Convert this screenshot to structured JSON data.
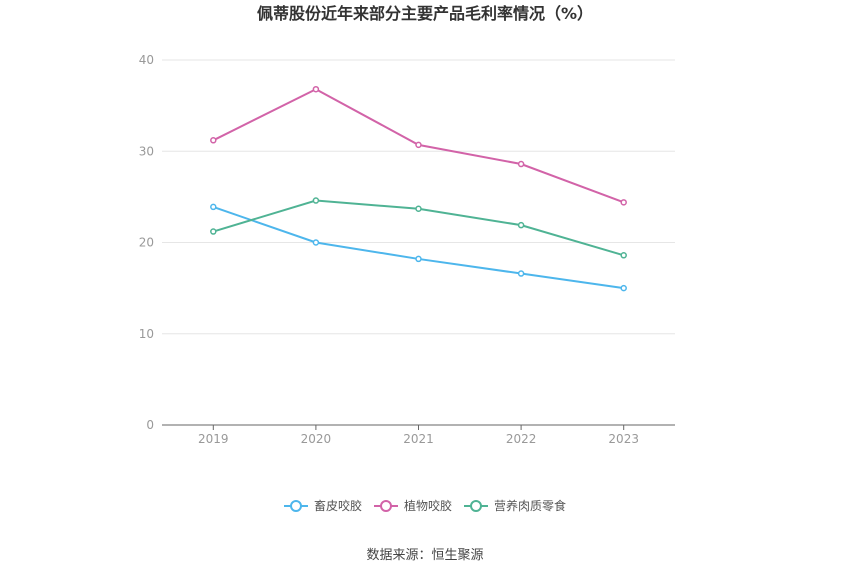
{
  "chart_data": {
    "type": "line",
    "title": "佩蒂股份近年来部分主要产品毛利率情况（%）",
    "categories": [
      "2019",
      "2020",
      "2021",
      "2022",
      "2023"
    ],
    "ylim": [
      0,
      40
    ],
    "yticks": [
      0,
      10,
      20,
      30,
      40
    ],
    "grid": true,
    "legend_position": "bottom",
    "series": [
      {
        "name": "畜皮咬胶",
        "color": "#4db6ec",
        "values": [
          23.9,
          20.0,
          18.2,
          16.6,
          15.0
        ]
      },
      {
        "name": "植物咬胶",
        "color": "#d263a8",
        "values": [
          31.2,
          36.8,
          30.7,
          28.6,
          24.4
        ]
      },
      {
        "name": "营养肉质零食",
        "color": "#4fb394",
        "values": [
          21.2,
          24.6,
          23.7,
          21.9,
          18.6
        ]
      }
    ]
  },
  "source": "数据来源：恒生聚源"
}
